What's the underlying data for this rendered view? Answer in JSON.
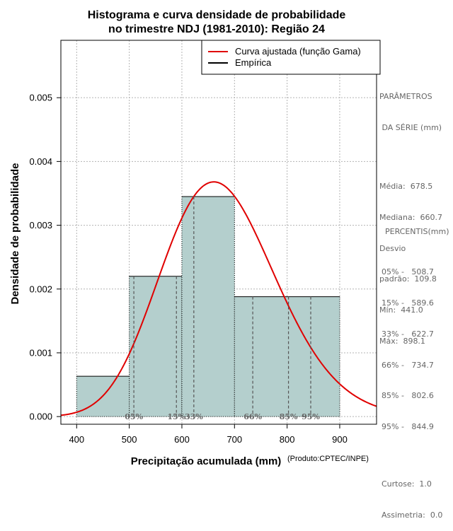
{
  "chart_data": {
    "type": "histogram",
    "title_lines": [
      "Histograma e curva densidade de probabilidade",
      "no trimestre NDJ (1981-2010): Região 24"
    ],
    "xlabel": "Precipitação acumulada (mm)",
    "ylabel": "Densidade de probabilidade",
    "source_note": "(Produto:CPTEC/INPE)",
    "xlim": [
      370,
      970
    ],
    "ylim": [
      -0.00012,
      0.0059
    ],
    "x_ticks": [
      400,
      500,
      600,
      700,
      800,
      900
    ],
    "x_tick_labels": [
      "400",
      "500",
      "600",
      "700",
      "800",
      "900"
    ],
    "y_ticks": [
      0.0,
      0.001,
      0.002,
      0.003,
      0.004,
      0.005
    ],
    "y_tick_labels": [
      "0.000",
      "0.001",
      "0.002",
      "0.003",
      "0.004",
      "0.005"
    ],
    "bins": [
      {
        "from": 400,
        "to": 500,
        "density": 0.000633
      },
      {
        "from": 500,
        "to": 600,
        "density": 0.0022
      },
      {
        "from": 600,
        "to": 700,
        "density": 0.00345
      },
      {
        "from": 700,
        "to": 900,
        "density": 0.00188
      }
    ],
    "gamma_fit": {
      "mean": 678.5,
      "sd": 109.8,
      "mode_density": 0.00368
    },
    "percentile_marks": [
      {
        "label": "05%",
        "x": 508.7
      },
      {
        "label": "15%",
        "x": 589.6
      },
      {
        "label": "33%",
        "x": 622.7
      },
      {
        "label": "66%",
        "x": 734.7
      },
      {
        "label": "85%",
        "x": 802.6
      },
      {
        "label": "95%",
        "x": 844.9
      }
    ],
    "legend": {
      "placement": "top-right",
      "entries": [
        {
          "label": "Curva ajustada (função Gama)",
          "color": "#e00000"
        },
        {
          "label": "Empírica",
          "color": "#000000"
        }
      ]
    },
    "colors": {
      "bar_fill": "#b4cfcd",
      "curve": "#e00000",
      "grid": "#b3b3b3",
      "percentile_line": "#555555",
      "percentile_text": "#666666"
    }
  },
  "stats_panel": {
    "params_title": [
      "PARÂMETROS",
      " DA SÉRIE (mm)"
    ],
    "params": [
      "Média:  678.5",
      "Mediana:  660.7",
      "Desvio",
      "padrão:  109.8",
      "Mín:  441.0",
      "Máx:  898.1"
    ],
    "percentis_title": "PERCENTIS(mm)",
    "percentis": [
      "05% -   508.7",
      "15% -   589.6",
      "33% -   622.7",
      "66% -   734.7",
      "85% -   802.6",
      "95% -   844.9"
    ],
    "extra": [
      "Curtose:  1.0",
      "Assimetria:  0.0"
    ]
  }
}
